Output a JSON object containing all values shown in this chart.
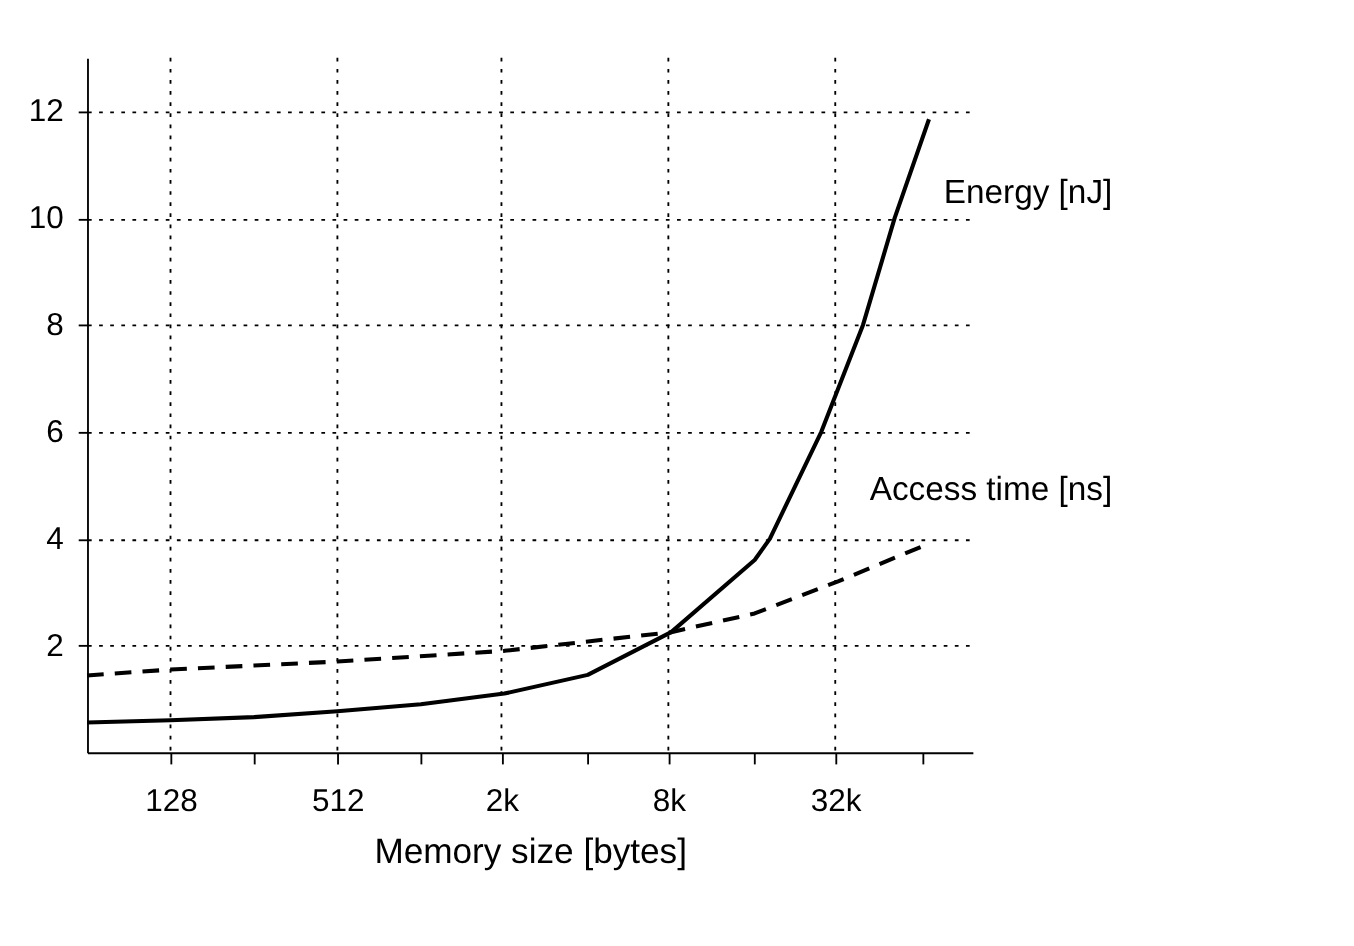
{
  "chart_data": {
    "type": "line",
    "xlabel": "Memory size [bytes]",
    "log": "x",
    "xlim": [
      64,
      100000
    ],
    "xticks": [
      {
        "value": 128,
        "label": "128"
      },
      {
        "value": 256,
        "label": null
      },
      {
        "value": 512,
        "label": "512"
      },
      {
        "value": 1024,
        "label": null
      },
      {
        "value": 2000,
        "label": "2k"
      },
      {
        "value": 4096,
        "label": null
      },
      {
        "value": 8000,
        "label": "8k"
      },
      {
        "value": 16384,
        "label": null
      },
      {
        "value": 32000,
        "label": "32k"
      },
      {
        "value": 65536,
        "label": null
      }
    ],
    "ylim": [
      0,
      13
    ],
    "yticks": [
      2,
      4,
      6,
      8,
      10,
      12
    ],
    "grid": true,
    "series": [
      {
        "name": "Energy [nJ]",
        "color": "#000000",
        "line_style": "solid",
        "x": [
          64,
          128,
          256,
          512,
          1024,
          2048,
          4096,
          8192,
          16384,
          18600,
          28500,
          40300,
          52400,
          69700
        ],
        "values": [
          0.56,
          0.6,
          0.66,
          0.77,
          0.9,
          1.1,
          1.45,
          2.25,
          3.6,
          4,
          6,
          8,
          10,
          11.85
        ]
      },
      {
        "name": "Access time [ns]",
        "color": "#000000",
        "line_style": "dashed",
        "x": [
          64,
          128,
          512,
          2048,
          8192,
          16384,
          32768,
          65536
        ],
        "values": [
          1.44,
          1.55,
          1.7,
          1.9,
          2.25,
          2.6,
          3.2,
          3.85
        ]
      }
    ]
  }
}
